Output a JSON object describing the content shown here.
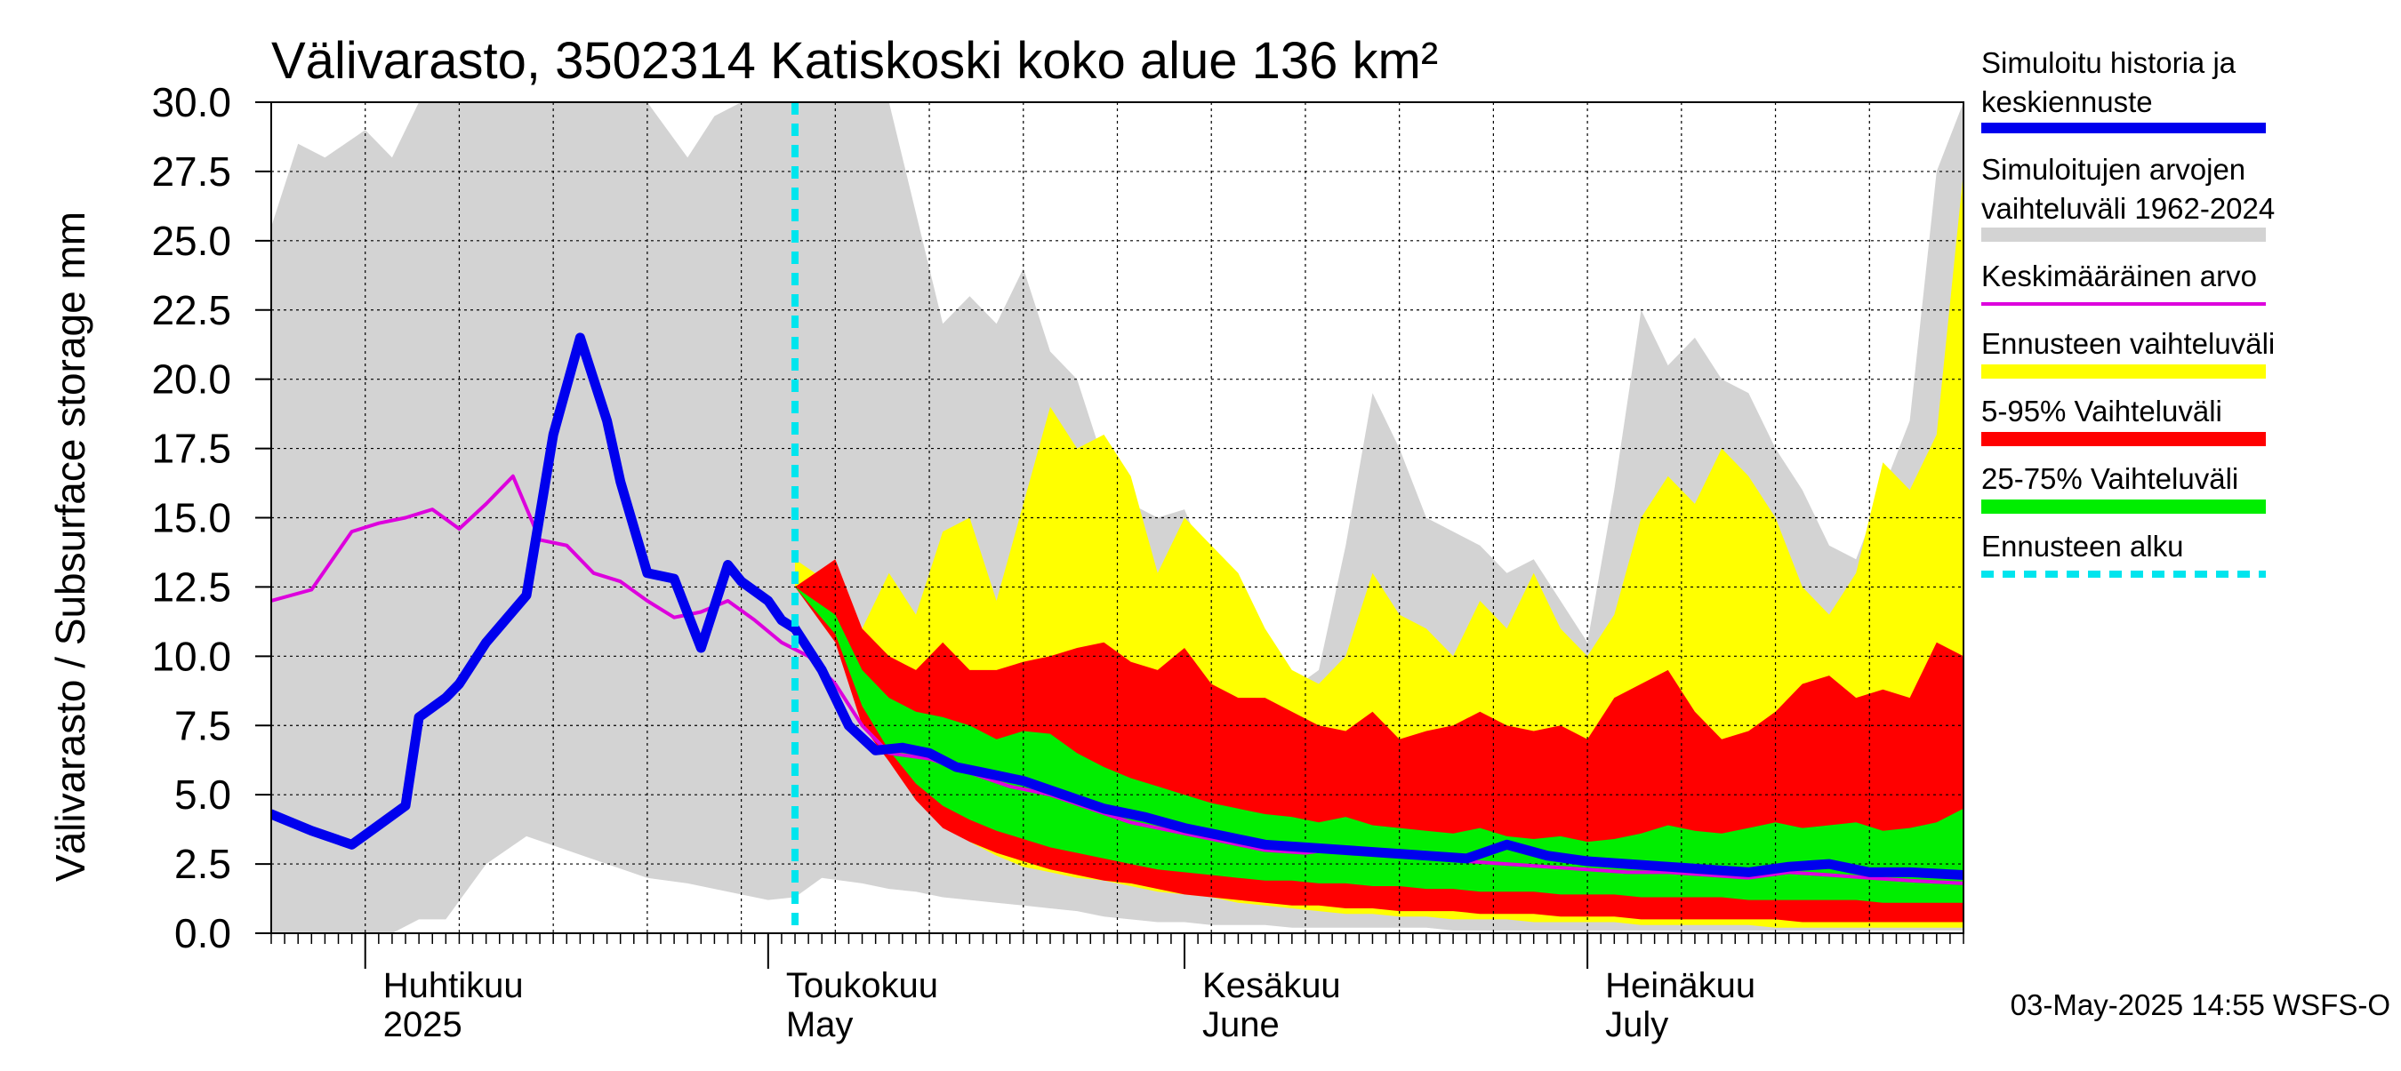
{
  "chart_data": {
    "type": "area",
    "title": "Välivarasto, 3502314 Katiskoski koko alue 136 km²",
    "ylabel": "Välivarasto / Subsurface storage  mm",
    "ylim": [
      0,
      30
    ],
    "yticks": [
      "0.0",
      "2.5",
      "5.0",
      "7.5",
      "10.0",
      "12.5",
      "15.0",
      "17.5",
      "20.0",
      "22.5",
      "25.0",
      "27.5",
      "30.0"
    ],
    "x_start": "2025-03-25",
    "x_end": "2025-07-29",
    "forecast_start": "2025-05-03",
    "grid": true,
    "legend_position": "right",
    "month_labels": [
      {
        "date": "2025-04-01",
        "fi": "Huhtikuu",
        "en": "2025"
      },
      {
        "date": "2025-05-01",
        "fi": "Toukokuu",
        "en": "May"
      },
      {
        "date": "2025-06-01",
        "fi": "Kesäkuu",
        "en": "June"
      },
      {
        "date": "2025-07-01",
        "fi": "Heinäkuu",
        "en": "July"
      }
    ],
    "legend": [
      {
        "line1": "Simuloitu historia ja",
        "line2": "keskiennuste",
        "color": "#0000ee",
        "style": "line"
      },
      {
        "line1": "Simuloitujen arvojen",
        "line2": "vaihteluväli 1962-2024",
        "color": "#d3d3d3",
        "style": "band"
      },
      {
        "line1": "Keskimääräinen arvo",
        "line2": "",
        "color": "#dd00dd",
        "style": "line"
      },
      {
        "line1": "Ennusteen vaihteluväli",
        "line2": "",
        "color": "#ffff00",
        "style": "band"
      },
      {
        "line1": "5-95% Vaihteluväli",
        "line2": "",
        "color": "#ff0000",
        "style": "band"
      },
      {
        "line1": "25-75% Vaihteluväli",
        "line2": "",
        "color": "#00ee00",
        "style": "band"
      },
      {
        "line1": "Ennusteen alku",
        "line2": "",
        "color": "#00e5ee",
        "style": "dash"
      }
    ],
    "historical_range": {
      "x": [
        "2025-03-25",
        "2025-03-27",
        "2025-03-29",
        "2025-04-01",
        "2025-04-03",
        "2025-04-05",
        "2025-04-07",
        "2025-04-10",
        "2025-04-13",
        "2025-04-16",
        "2025-04-19",
        "2025-04-22",
        "2025-04-25",
        "2025-04-27",
        "2025-04-29",
        "2025-05-01",
        "2025-05-03",
        "2025-05-05",
        "2025-05-08",
        "2025-05-10",
        "2025-05-12",
        "2025-05-14",
        "2025-05-16",
        "2025-05-18",
        "2025-05-20",
        "2025-05-22",
        "2025-05-24",
        "2025-05-26",
        "2025-05-28",
        "2025-05-30",
        "2025-06-01",
        "2025-06-03",
        "2025-06-05",
        "2025-06-07",
        "2025-06-09",
        "2025-06-11",
        "2025-06-13",
        "2025-06-15",
        "2025-06-17",
        "2025-06-19",
        "2025-06-21",
        "2025-06-23",
        "2025-06-25",
        "2025-06-27",
        "2025-06-29",
        "2025-07-01",
        "2025-07-03",
        "2025-07-05",
        "2025-07-07",
        "2025-07-09",
        "2025-07-11",
        "2025-07-13",
        "2025-07-15",
        "2025-07-17",
        "2025-07-19",
        "2025-07-21",
        "2025-07-23",
        "2025-07-25",
        "2025-07-27",
        "2025-07-29"
      ],
      "upper": [
        25.5,
        28.5,
        28.0,
        29.0,
        28.0,
        30.0,
        30.0,
        30.0,
        30.0,
        30.0,
        30.0,
        30.0,
        28.0,
        29.5,
        30.0,
        30.0,
        30.0,
        30.0,
        30.0,
        30.0,
        26.0,
        22.0,
        23.0,
        22.0,
        24.0,
        21.0,
        20.0,
        17.0,
        15.5,
        15.0,
        15.3,
        13.0,
        11.0,
        9.5,
        8.8,
        9.5,
        14.0,
        19.5,
        17.5,
        15.0,
        14.5,
        14.0,
        13.0,
        13.5,
        12.0,
        10.5,
        16.0,
        22.5,
        20.5,
        21.5,
        20.0,
        19.5,
        17.5,
        16.0,
        14.0,
        13.5,
        16.0,
        18.5,
        27.5,
        30.0
      ],
      "lower": [
        0.0,
        0.0,
        0.0,
        0.0,
        0.0,
        0.5,
        0.5,
        2.5,
        3.5,
        3.0,
        2.5,
        2.0,
        1.8,
        1.6,
        1.4,
        1.2,
        1.3,
        2.0,
        1.8,
        1.6,
        1.5,
        1.3,
        1.2,
        1.1,
        1.0,
        0.9,
        0.8,
        0.6,
        0.5,
        0.4,
        0.4,
        0.3,
        0.3,
        0.3,
        0.2,
        0.2,
        0.2,
        0.2,
        0.2,
        0.2,
        0.1,
        0.1,
        0.1,
        0.1,
        0.1,
        0.1,
        0.1,
        0.1,
        0.1,
        0.1,
        0.1,
        0.1,
        0.1,
        0.1,
        0.1,
        0.1,
        0.1,
        0.1,
        0.1,
        0.1
      ]
    },
    "forecast_envelope": {
      "x": [
        "2025-05-03",
        "2025-05-06",
        "2025-05-08",
        "2025-05-10",
        "2025-05-12",
        "2025-05-14",
        "2025-05-16",
        "2025-05-18",
        "2025-05-20",
        "2025-05-22",
        "2025-05-24",
        "2025-05-26",
        "2025-05-28",
        "2025-05-30",
        "2025-06-01",
        "2025-06-03",
        "2025-06-05",
        "2025-06-07",
        "2025-06-09",
        "2025-06-11",
        "2025-06-13",
        "2025-06-15",
        "2025-06-17",
        "2025-06-19",
        "2025-06-21",
        "2025-06-23",
        "2025-06-25",
        "2025-06-27",
        "2025-06-29",
        "2025-07-01",
        "2025-07-03",
        "2025-07-05",
        "2025-07-07",
        "2025-07-09",
        "2025-07-11",
        "2025-07-13",
        "2025-07-15",
        "2025-07-17",
        "2025-07-19",
        "2025-07-21",
        "2025-07-23",
        "2025-07-25",
        "2025-07-27",
        "2025-07-29"
      ],
      "upper": [
        13.5,
        12.5,
        11.0,
        13.0,
        11.5,
        14.5,
        15.0,
        12.0,
        15.5,
        19.0,
        17.5,
        18.0,
        16.5,
        13.0,
        15.0,
        14.0,
        13.0,
        11.0,
        9.5,
        9.0,
        10.0,
        13.0,
        11.5,
        11.0,
        10.0,
        12.0,
        11.0,
        13.0,
        11.0,
        10.0,
        11.5,
        15.0,
        16.5,
        15.5,
        17.5,
        16.5,
        15.0,
        12.5,
        11.5,
        13.0,
        17.0,
        16.0,
        18.0,
        27.5
      ],
      "lower": [
        12.5,
        11.0,
        8.0,
        6.5,
        5.0,
        4.0,
        3.3,
        2.8,
        2.4,
        2.2,
        2.0,
        1.9,
        1.7,
        1.5,
        1.4,
        1.3,
        1.1,
        1.0,
        0.9,
        0.8,
        0.7,
        0.7,
        0.6,
        0.6,
        0.5,
        0.5,
        0.5,
        0.4,
        0.4,
        0.4,
        0.4,
        0.3,
        0.3,
        0.3,
        0.3,
        0.3,
        0.2,
        0.2,
        0.2,
        0.2,
        0.2,
        0.2,
        0.2,
        0.2
      ]
    },
    "forecast_p5_p95": {
      "x": [
        "2025-05-03",
        "2025-05-06",
        "2025-05-08",
        "2025-05-10",
        "2025-05-12",
        "2025-05-14",
        "2025-05-16",
        "2025-05-18",
        "2025-05-20",
        "2025-05-22",
        "2025-05-24",
        "2025-05-26",
        "2025-05-28",
        "2025-05-30",
        "2025-06-01",
        "2025-06-03",
        "2025-06-05",
        "2025-06-07",
        "2025-06-09",
        "2025-06-11",
        "2025-06-13",
        "2025-06-15",
        "2025-06-17",
        "2025-06-19",
        "2025-06-21",
        "2025-06-23",
        "2025-06-25",
        "2025-06-27",
        "2025-06-29",
        "2025-07-01",
        "2025-07-03",
        "2025-07-05",
        "2025-07-07",
        "2025-07-09",
        "2025-07-11",
        "2025-07-13",
        "2025-07-15",
        "2025-07-17",
        "2025-07-19",
        "2025-07-21",
        "2025-07-23",
        "2025-07-25",
        "2025-07-27",
        "2025-07-29"
      ],
      "upper": [
        12.5,
        13.5,
        11.0,
        10.0,
        9.5,
        10.5,
        9.5,
        9.5,
        9.8,
        10.0,
        10.3,
        10.5,
        9.8,
        9.5,
        10.3,
        9.0,
        8.5,
        8.5,
        8.0,
        7.5,
        7.3,
        8.0,
        7.0,
        7.3,
        7.5,
        8.0,
        7.5,
        7.3,
        7.5,
        7.0,
        8.5,
        9.0,
        9.5,
        8.0,
        7.0,
        7.3,
        8.0,
        9.0,
        9.3,
        8.5,
        8.8,
        8.5,
        10.5,
        10.0
      ],
      "lower": [
        12.5,
        10.5,
        7.5,
        6.2,
        4.8,
        3.8,
        3.3,
        2.9,
        2.6,
        2.3,
        2.1,
        1.9,
        1.8,
        1.6,
        1.4,
        1.3,
        1.2,
        1.1,
        1.0,
        1.0,
        0.9,
        0.9,
        0.8,
        0.8,
        0.8,
        0.7,
        0.7,
        0.7,
        0.6,
        0.6,
        0.6,
        0.5,
        0.5,
        0.5,
        0.5,
        0.5,
        0.5,
        0.4,
        0.4,
        0.4,
        0.4,
        0.4,
        0.4,
        0.4
      ]
    },
    "forecast_p25_p75": {
      "x": [
        "2025-05-03",
        "2025-05-06",
        "2025-05-08",
        "2025-05-10",
        "2025-05-12",
        "2025-05-14",
        "2025-05-16",
        "2025-05-18",
        "2025-05-20",
        "2025-05-22",
        "2025-05-24",
        "2025-05-26",
        "2025-05-28",
        "2025-05-30",
        "2025-06-01",
        "2025-06-03",
        "2025-06-05",
        "2025-06-07",
        "2025-06-09",
        "2025-06-11",
        "2025-06-13",
        "2025-06-15",
        "2025-06-17",
        "2025-06-19",
        "2025-06-21",
        "2025-06-23",
        "2025-06-25",
        "2025-06-27",
        "2025-06-29",
        "2025-07-01",
        "2025-07-03",
        "2025-07-05",
        "2025-07-07",
        "2025-07-09",
        "2025-07-11",
        "2025-07-13",
        "2025-07-15",
        "2025-07-17",
        "2025-07-19",
        "2025-07-21",
        "2025-07-23",
        "2025-07-25",
        "2025-07-27",
        "2025-07-29"
      ],
      "upper": [
        12.5,
        11.5,
        9.5,
        8.5,
        8.0,
        7.8,
        7.5,
        7.0,
        7.3,
        7.2,
        6.5,
        6.0,
        5.6,
        5.3,
        5.0,
        4.7,
        4.5,
        4.3,
        4.2,
        4.0,
        4.2,
        3.9,
        3.8,
        3.7,
        3.6,
        3.8,
        3.5,
        3.4,
        3.5,
        3.3,
        3.4,
        3.6,
        3.9,
        3.7,
        3.6,
        3.8,
        4.0,
        3.8,
        3.9,
        4.0,
        3.7,
        3.8,
        4.0,
        4.5
      ],
      "lower": [
        12.5,
        10.8,
        8.2,
        6.6,
        5.4,
        4.6,
        4.1,
        3.7,
        3.4,
        3.1,
        2.9,
        2.7,
        2.5,
        2.3,
        2.2,
        2.1,
        2.0,
        1.9,
        1.9,
        1.8,
        1.8,
        1.7,
        1.7,
        1.6,
        1.6,
        1.5,
        1.5,
        1.5,
        1.4,
        1.4,
        1.4,
        1.3,
        1.3,
        1.3,
        1.3,
        1.2,
        1.2,
        1.2,
        1.2,
        1.2,
        1.1,
        1.1,
        1.1,
        1.1
      ]
    },
    "simulated_history_and_median": {
      "x": [
        "2025-03-25",
        "2025-03-28",
        "2025-03-31",
        "2025-04-02",
        "2025-04-04",
        "2025-04-05",
        "2025-04-07",
        "2025-04-08",
        "2025-04-10",
        "2025-04-13",
        "2025-04-15",
        "2025-04-17",
        "2025-04-19",
        "2025-04-20",
        "2025-04-22",
        "2025-04-24",
        "2025-04-26",
        "2025-04-28",
        "2025-04-29",
        "2025-05-01",
        "2025-05-02",
        "2025-05-03",
        "2025-05-05",
        "2025-05-07",
        "2025-05-09",
        "2025-05-11",
        "2025-05-13",
        "2025-05-15",
        "2025-05-17",
        "2025-05-20",
        "2025-05-23",
        "2025-05-26",
        "2025-05-29",
        "2025-06-01",
        "2025-06-04",
        "2025-06-07",
        "2025-06-10",
        "2025-06-13",
        "2025-06-16",
        "2025-06-19",
        "2025-06-22",
        "2025-06-25",
        "2025-06-28",
        "2025-07-01",
        "2025-07-04",
        "2025-07-07",
        "2025-07-10",
        "2025-07-13",
        "2025-07-16",
        "2025-07-19",
        "2025-07-22",
        "2025-07-25",
        "2025-07-29"
      ],
      "y": [
        4.3,
        3.7,
        3.2,
        3.9,
        4.6,
        7.8,
        8.5,
        9.0,
        10.5,
        12.2,
        18.0,
        21.5,
        18.5,
        16.3,
        13.0,
        12.8,
        10.3,
        13.3,
        12.7,
        12.0,
        11.3,
        11.0,
        9.5,
        7.5,
        6.6,
        6.7,
        6.5,
        6.0,
        5.8,
        5.5,
        5.0,
        4.5,
        4.2,
        3.8,
        3.5,
        3.2,
        3.1,
        3.0,
        2.9,
        2.8,
        2.7,
        3.2,
        2.8,
        2.6,
        2.5,
        2.4,
        2.3,
        2.2,
        2.4,
        2.5,
        2.2,
        2.2,
        2.1
      ]
    },
    "mean_value": {
      "x": [
        "2025-03-25",
        "2025-03-28",
        "2025-03-31",
        "2025-04-02",
        "2025-04-04",
        "2025-04-06",
        "2025-04-08",
        "2025-04-10",
        "2025-04-12",
        "2025-04-14",
        "2025-04-16",
        "2025-04-18",
        "2025-04-20",
        "2025-04-22",
        "2025-04-24",
        "2025-04-26",
        "2025-04-28",
        "2025-04-30",
        "2025-05-02",
        "2025-05-04",
        "2025-05-06",
        "2025-05-08",
        "2025-05-10",
        "2025-05-13",
        "2025-05-16",
        "2025-05-19",
        "2025-05-22",
        "2025-05-25",
        "2025-05-28",
        "2025-06-01",
        "2025-06-04",
        "2025-06-07",
        "2025-06-10",
        "2025-06-13",
        "2025-06-16",
        "2025-06-19",
        "2025-06-22",
        "2025-06-25",
        "2025-06-28",
        "2025-07-01",
        "2025-07-04",
        "2025-07-07",
        "2025-07-10",
        "2025-07-13",
        "2025-07-16",
        "2025-07-19",
        "2025-07-22",
        "2025-07-25",
        "2025-07-29"
      ],
      "y": [
        12.0,
        12.4,
        14.5,
        14.8,
        15.0,
        15.3,
        14.6,
        15.5,
        16.5,
        14.2,
        14.0,
        13.0,
        12.7,
        12.0,
        11.4,
        11.6,
        12.0,
        11.3,
        10.5,
        10.0,
        9.0,
        7.5,
        6.5,
        6.3,
        5.8,
        5.3,
        5.0,
        4.5,
        4.0,
        3.6,
        3.3,
        3.0,
        2.9,
        3.1,
        3.0,
        2.8,
        2.6,
        2.5,
        2.4,
        2.3,
        2.2,
        2.2,
        2.1,
        2.0,
        2.2,
        2.1,
        2.0,
        1.9,
        1.8
      ]
    },
    "footer": "03-May-2025 14:55 WSFS-O"
  }
}
